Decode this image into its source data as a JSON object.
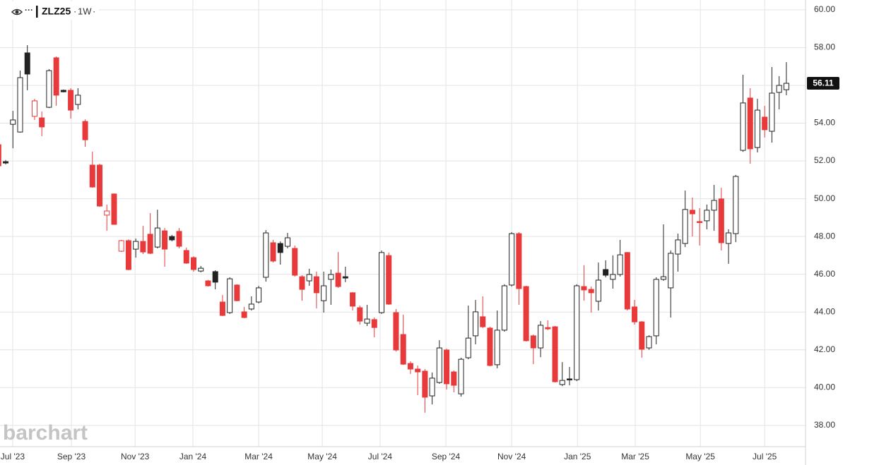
{
  "chart_data": {
    "type": "candlestick",
    "symbol": "ZLZ25",
    "interval": "1W",
    "watermark": "barchart",
    "up_color": "#222222",
    "down_color": "#e8393b",
    "grid": true,
    "xlim": [
      0.215,
      111.65
    ],
    "ylim": [
      36.91,
      60.52
    ],
    "yticks": [
      {
        "value": 38,
        "label": "38.00"
      },
      {
        "value": 40,
        "label": "40.00"
      },
      {
        "value": 42,
        "label": "42.00"
      },
      {
        "value": 44,
        "label": "44.00"
      },
      {
        "value": 46,
        "label": "46.00"
      },
      {
        "value": 48,
        "label": "48.00"
      },
      {
        "value": 50,
        "label": "50.00"
      },
      {
        "value": 52,
        "label": "52.00"
      },
      {
        "value": 54,
        "label": "54.00"
      },
      {
        "value": 56,
        "label": "56.00"
      },
      {
        "value": 58,
        "label": "58.00"
      },
      {
        "value": 60,
        "label": "60.00"
      }
    ],
    "xticks": [
      {
        "value": 1.97,
        "label": "Jul '23"
      },
      {
        "value": 10.09,
        "label": "Sep '23"
      },
      {
        "value": 18.9,
        "label": "Nov '23"
      },
      {
        "value": 26.9,
        "label": "Jan '24"
      },
      {
        "value": 36.0,
        "label": "Mar '24"
      },
      {
        "value": 44.8,
        "label": "May '24"
      },
      {
        "value": 52.8,
        "label": "Jul '24"
      },
      {
        "value": 61.9,
        "label": "Sep '24"
      },
      {
        "value": 71.0,
        "label": "Nov '24"
      },
      {
        "value": 80.1,
        "label": "Jan '25"
      },
      {
        "value": 88.1,
        "label": "Mar '25"
      },
      {
        "value": 97.1,
        "label": "May '25"
      },
      {
        "value": 106.0,
        "label": "Jul '25"
      }
    ],
    "open": [
      52.86,
      51.96,
      53.94,
      53.53,
      57.72,
      54.36,
      54.28,
      54.84,
      57.46,
      55.74,
      55.74,
      54.99,
      54.09,
      51.78,
      51.78,
      49.13,
      50.25,
      47.22,
      47.78,
      47.33,
      47.74,
      48.12,
      47.44,
      48.3,
      48.0,
      48.27,
      47.26,
      46.88,
      46.17,
      45.65,
      46.14,
      44.53,
      43.97,
      45.43,
      44.01,
      44.16,
      44.53,
      45.84,
      47.67,
      47.63,
      47.48,
      47.37,
      45.87,
      45.65,
      45.87,
      44.6,
      45.73,
      46.06,
      45.87,
      45.02,
      44.23,
      43.41,
      43.6,
      43.97,
      46.99,
      43.97,
      42.81,
      41.28,
      40.98,
      40.87,
      39.56,
      40.27,
      41.99,
      40.83,
      39.67,
      41.58,
      42.74,
      43.75,
      43.15,
      41.21,
      43.04,
      45.43,
      48.15,
      45.35,
      42.74,
      42.1,
      43.18,
      43.22,
      40.16,
      40.46,
      40.42,
      45.35,
      45.2,
      44.57,
      46.25,
      45.73,
      45.99,
      47.15,
      44.27,
      43.48,
      42.1,
      42.74,
      45.73,
      45.28,
      47.07,
      47.63,
      49.39,
      48.79,
      48.83,
      49.39,
      49.99,
      47.63,
      48.15,
      52.56,
      55.33,
      52.71,
      54.32,
      53.57,
      55.63,
      55.77
    ],
    "high": [
      53.05,
      52.05,
      54.65,
      56.78,
      58.13,
      55.29,
      54.62,
      56.86,
      57.53,
      55.78,
      55.85,
      55.85,
      54.2,
      52.49,
      51.85,
      49.69,
      50.28,
      47.82,
      47.85,
      47.89,
      48.56,
      49.24,
      49.42,
      48.45,
      48.08,
      48.45,
      47.41,
      46.95,
      46.44,
      45.7,
      46.21,
      44.9,
      45.84,
      45.47,
      44.27,
      44.83,
      45.39,
      48.34,
      47.82,
      47.74,
      48.19,
      47.52,
      45.95,
      46.29,
      46.14,
      46.14,
      46.25,
      47.18,
      46.4,
      45.06,
      44.34,
      44.38,
      43.71,
      47.26,
      47.15,
      44.16,
      43.86,
      41.39,
      41.17,
      40.98,
      40.8,
      42.51,
      42.06,
      40.91,
      41.58,
      44.34,
      44.64,
      44.83,
      43.22,
      44.08,
      45.47,
      48.23,
      48.23,
      45.39,
      42.81,
      43.52,
      43.56,
      43.26,
      41.35,
      41.09,
      45.47,
      46.48,
      45.35,
      46.62,
      46.74,
      47.0,
      47.82,
      47.18,
      44.64,
      43.52,
      42.77,
      45.84,
      48.64,
      47.26,
      48.15,
      50.43,
      50.06,
      49.5,
      49.69,
      50.73,
      50.58,
      48.38,
      51.26,
      56.56,
      55.85,
      55.29,
      54.92,
      56.97,
      56.49,
      57.23
    ],
    "low": [
      51.67,
      51.82,
      52.67,
      53.5,
      55.74,
      54.17,
      53.31,
      54.8,
      54.92,
      55.63,
      54.24,
      54.73,
      52.75,
      50.58,
      49.57,
      48.3,
      48.64,
      47.18,
      46.21,
      46.88,
      47.07,
      47.07,
      47.37,
      46.4,
      47.74,
      47.37,
      46.55,
      46.14,
      46.1,
      45.35,
      45.2,
      43.78,
      43.9,
      44.57,
      43.67,
      44.08,
      44.46,
      45.61,
      46.62,
      46.51,
      47.37,
      45.87,
      44.6,
      45.39,
      44.19,
      43.97,
      44.38,
      45.28,
      45.58,
      44.08,
      43.33,
      43.26,
      42.66,
      43.9,
      44.38,
      41.91,
      41.2,
      40.72,
      39.6,
      38.67,
      39.11,
      40.2,
      39.9,
      39.75,
      39.52,
      41.5,
      42.29,
      43.15,
      41.13,
      41.02,
      42.96,
      45.35,
      44.38,
      42.44,
      41.24,
      41.61,
      43.04,
      40.27,
      40.08,
      40.12,
      40.34,
      44.6,
      43.97,
      44.08,
      45.84,
      45.24,
      45.88,
      44.08,
      43.33,
      41.58,
      42.0,
      42.29,
      45.65,
      43.71,
      46.14,
      47.44,
      48.0,
      47.52,
      48.38,
      48.3,
      47.26,
      46.55,
      47.7,
      52.48,
      51.85,
      52.45,
      53.24,
      52.97,
      54.73,
      55.48
    ],
    "close": [
      51.74,
      51.89,
      54.17,
      56.41,
      56.6,
      55.18,
      53.8,
      56.78,
      55.48,
      55.66,
      54.69,
      55.48,
      53.12,
      50.62,
      49.61,
      49.35,
      48.64,
      47.78,
      46.25,
      47.74,
      47.18,
      47.11,
      48.45,
      47.33,
      47.82,
      47.48,
      46.59,
      46.25,
      46.32,
      45.39,
      45.58,
      43.82,
      45.76,
      44.6,
      43.71,
      44.42,
      45.28,
      48.19,
      46.7,
      47.15,
      47.93,
      45.95,
      45.2,
      45.99,
      45.02,
      45.39,
      45.99,
      45.35,
      45.8,
      44.31,
      43.52,
      43.63,
      43.18,
      47.15,
      44.42,
      41.99,
      41.24,
      40.98,
      40.83,
      39.49,
      40.5,
      42.1,
      40.2,
      40.12,
      41.5,
      42.62,
      44.01,
      43.22,
      41.17,
      43.04,
      45.39,
      48.15,
      45.24,
      42.48,
      42.1,
      43.3,
      43.11,
      40.31,
      40.38,
      40.42,
      45.39,
      45.17,
      45.02,
      45.69,
      45.95,
      45.99,
      47.03,
      44.16,
      43.48,
      42.03,
      42.7,
      45.73,
      45.87,
      47.11,
      47.82,
      49.43,
      49.2,
      48.75,
      49.39,
      49.91,
      47.67,
      48.19,
      51.18,
      55.07,
      52.64,
      54.69,
      53.65,
      55.59,
      56.0,
      56.11
    ]
  }
}
